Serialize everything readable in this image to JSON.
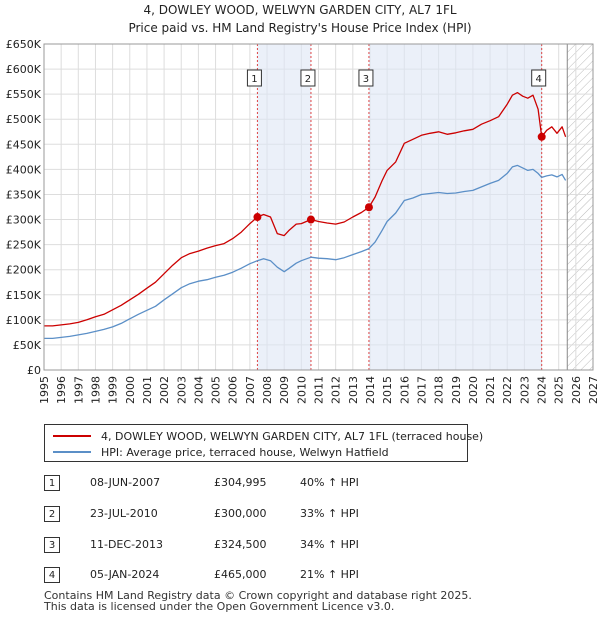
{
  "chart_data": {
    "type": "line",
    "title": "4, DOWLEY WOOD, WELWYN GARDEN CITY, AL7 1FL",
    "subtitle": "Price paid vs. HM Land Registry's House Price Index (HPI)",
    "xlabel": "",
    "ylabel": "",
    "xlim": [
      1995,
      2027
    ],
    "ylim": [
      0,
      650000
    ],
    "grid": true,
    "x_ticks": [
      1995,
      1996,
      1997,
      1998,
      1999,
      2000,
      2001,
      2002,
      2003,
      2004,
      2005,
      2006,
      2007,
      2008,
      2009,
      2010,
      2011,
      2012,
      2013,
      2014,
      2015,
      2016,
      2017,
      2018,
      2019,
      2020,
      2021,
      2022,
      2023,
      2024,
      2025,
      2026,
      2027
    ],
    "y_ticks": [
      0,
      50000,
      100000,
      150000,
      200000,
      250000,
      300000,
      350000,
      400000,
      450000,
      500000,
      550000,
      600000,
      650000
    ],
    "y_tick_labels": [
      "£0",
      "£50K",
      "£100K",
      "£150K",
      "£200K",
      "£250K",
      "£300K",
      "£350K",
      "£400K",
      "£450K",
      "£500K",
      "£550K",
      "£600K",
      "£650K"
    ],
    "forecast_start": 2025.5,
    "series": [
      {
        "name": "4, DOWLEY WOOD, WELWYN GARDEN CITY, AL7 1FL (terraced house)",
        "color": "#cc0000",
        "x": [
          1995.0,
          1995.5,
          1996.0,
          1996.5,
          1997.0,
          1997.5,
          1998.0,
          1998.5,
          1999.0,
          1999.5,
          2000.0,
          2000.5,
          2001.0,
          2001.5,
          2002.0,
          2002.5,
          2003.0,
          2003.5,
          2004.0,
          2004.5,
          2005.0,
          2005.5,
          2006.0,
          2006.5,
          2007.0,
          2007.44,
          2007.8,
          2008.2,
          2008.6,
          2009.0,
          2009.3,
          2009.7,
          2010.0,
          2010.56,
          2011.0,
          2011.5,
          2012.0,
          2012.5,
          2013.0,
          2013.5,
          2013.94,
          2014.3,
          2014.7,
          2015.0,
          2015.5,
          2016.0,
          2016.5,
          2017.0,
          2017.5,
          2018.0,
          2018.5,
          2019.0,
          2019.5,
          2020.0,
          2020.5,
          2021.0,
          2021.5,
          2022.0,
          2022.3,
          2022.6,
          2022.9,
          2023.2,
          2023.5,
          2023.8,
          2024.01,
          2024.3,
          2024.6,
          2024.9,
          2025.2,
          2025.4
        ],
        "y": [
          88000,
          88000,
          90000,
          92000,
          95000,
          100000,
          106000,
          111000,
          120000,
          129000,
          140000,
          151000,
          163000,
          175000,
          192000,
          209000,
          224000,
          232000,
          237000,
          243000,
          248000,
          252000,
          262000,
          275000,
          292000,
          304995,
          310000,
          305000,
          272000,
          268000,
          279000,
          291000,
          292000,
          300000,
          296000,
          293000,
          291000,
          295000,
          305000,
          314000,
          324500,
          345000,
          377000,
          398000,
          415000,
          452000,
          460000,
          468000,
          472000,
          475000,
          470000,
          473000,
          477000,
          480000,
          490000,
          497000,
          505000,
          530000,
          548000,
          553000,
          546000,
          542000,
          548000,
          520000,
          465000,
          478000,
          485000,
          472000,
          485000,
          465000
        ]
      },
      {
        "name": "HPI: Average price, terraced house, Welwyn Hatfield",
        "color": "#5b8fc7",
        "x": [
          1995.0,
          1995.5,
          1996.0,
          1996.5,
          1997.0,
          1997.5,
          1998.0,
          1998.5,
          1999.0,
          1999.5,
          2000.0,
          2000.5,
          2001.0,
          2001.5,
          2002.0,
          2002.5,
          2003.0,
          2003.5,
          2004.0,
          2004.5,
          2005.0,
          2005.5,
          2006.0,
          2006.5,
          2007.0,
          2007.44,
          2007.8,
          2008.2,
          2008.6,
          2009.0,
          2009.3,
          2009.7,
          2010.0,
          2010.56,
          2011.0,
          2011.5,
          2012.0,
          2012.5,
          2013.0,
          2013.5,
          2013.94,
          2014.3,
          2014.7,
          2015.0,
          2015.5,
          2016.0,
          2016.5,
          2017.0,
          2017.5,
          2018.0,
          2018.5,
          2019.0,
          2019.5,
          2020.0,
          2020.5,
          2021.0,
          2021.5,
          2022.0,
          2022.3,
          2022.6,
          2022.9,
          2023.2,
          2023.5,
          2023.8,
          2024.01,
          2024.3,
          2024.6,
          2024.9,
          2025.2,
          2025.4
        ],
        "y": [
          63000,
          63000,
          65000,
          67000,
          70000,
          73000,
          77000,
          81000,
          86000,
          93000,
          102000,
          111000,
          119000,
          127000,
          140000,
          152000,
          164000,
          172000,
          177000,
          180000,
          185000,
          189000,
          195000,
          203000,
          212000,
          218000,
          222000,
          218000,
          205000,
          196000,
          203000,
          213000,
          218000,
          225000,
          223000,
          222000,
          220000,
          224000,
          230000,
          236000,
          242000,
          255000,
          278000,
          296000,
          313000,
          338000,
          343000,
          350000,
          352000,
          354000,
          352000,
          353000,
          356000,
          358000,
          365000,
          372000,
          378000,
          392000,
          405000,
          408000,
          403000,
          398000,
          400000,
          392000,
          384000,
          387000,
          389000,
          385000,
          390000,
          378000
        ]
      }
    ],
    "sales": [
      {
        "num": "1",
        "x": 2007.44,
        "y": 304995
      },
      {
        "num": "2",
        "x": 2010.56,
        "y": 300000
      },
      {
        "num": "3",
        "x": 2013.94,
        "y": 324500
      },
      {
        "num": "4",
        "x": 2024.01,
        "y": 465000
      }
    ]
  },
  "legend": {
    "property_label": "4, DOWLEY WOOD, WELWYN GARDEN CITY, AL7 1FL (terraced house)",
    "hpi_label": "HPI: Average price, terraced house, Welwyn Hatfield"
  },
  "sales_table": [
    {
      "num": "1",
      "date": "08-JUN-2007",
      "price": "£304,995",
      "hpi": "40% ↑ HPI"
    },
    {
      "num": "2",
      "date": "23-JUL-2010",
      "price": "£300,000",
      "hpi": "33% ↑ HPI"
    },
    {
      "num": "3",
      "date": "11-DEC-2013",
      "price": "£324,500",
      "hpi": "34% ↑ HPI"
    },
    {
      "num": "4",
      "date": "05-JAN-2024",
      "price": "£465,000",
      "hpi": "21% ↑ HPI"
    }
  ],
  "footer": {
    "line1": "Contains HM Land Registry data © Crown copyright and database right 2025.",
    "line2": "This data is licensed under the Open Government Licence v3.0."
  },
  "colors": {
    "property": "#cc0000",
    "hpi": "#5b8fc7",
    "sale_band": "#dde6f5",
    "grid": "#dddddd"
  }
}
